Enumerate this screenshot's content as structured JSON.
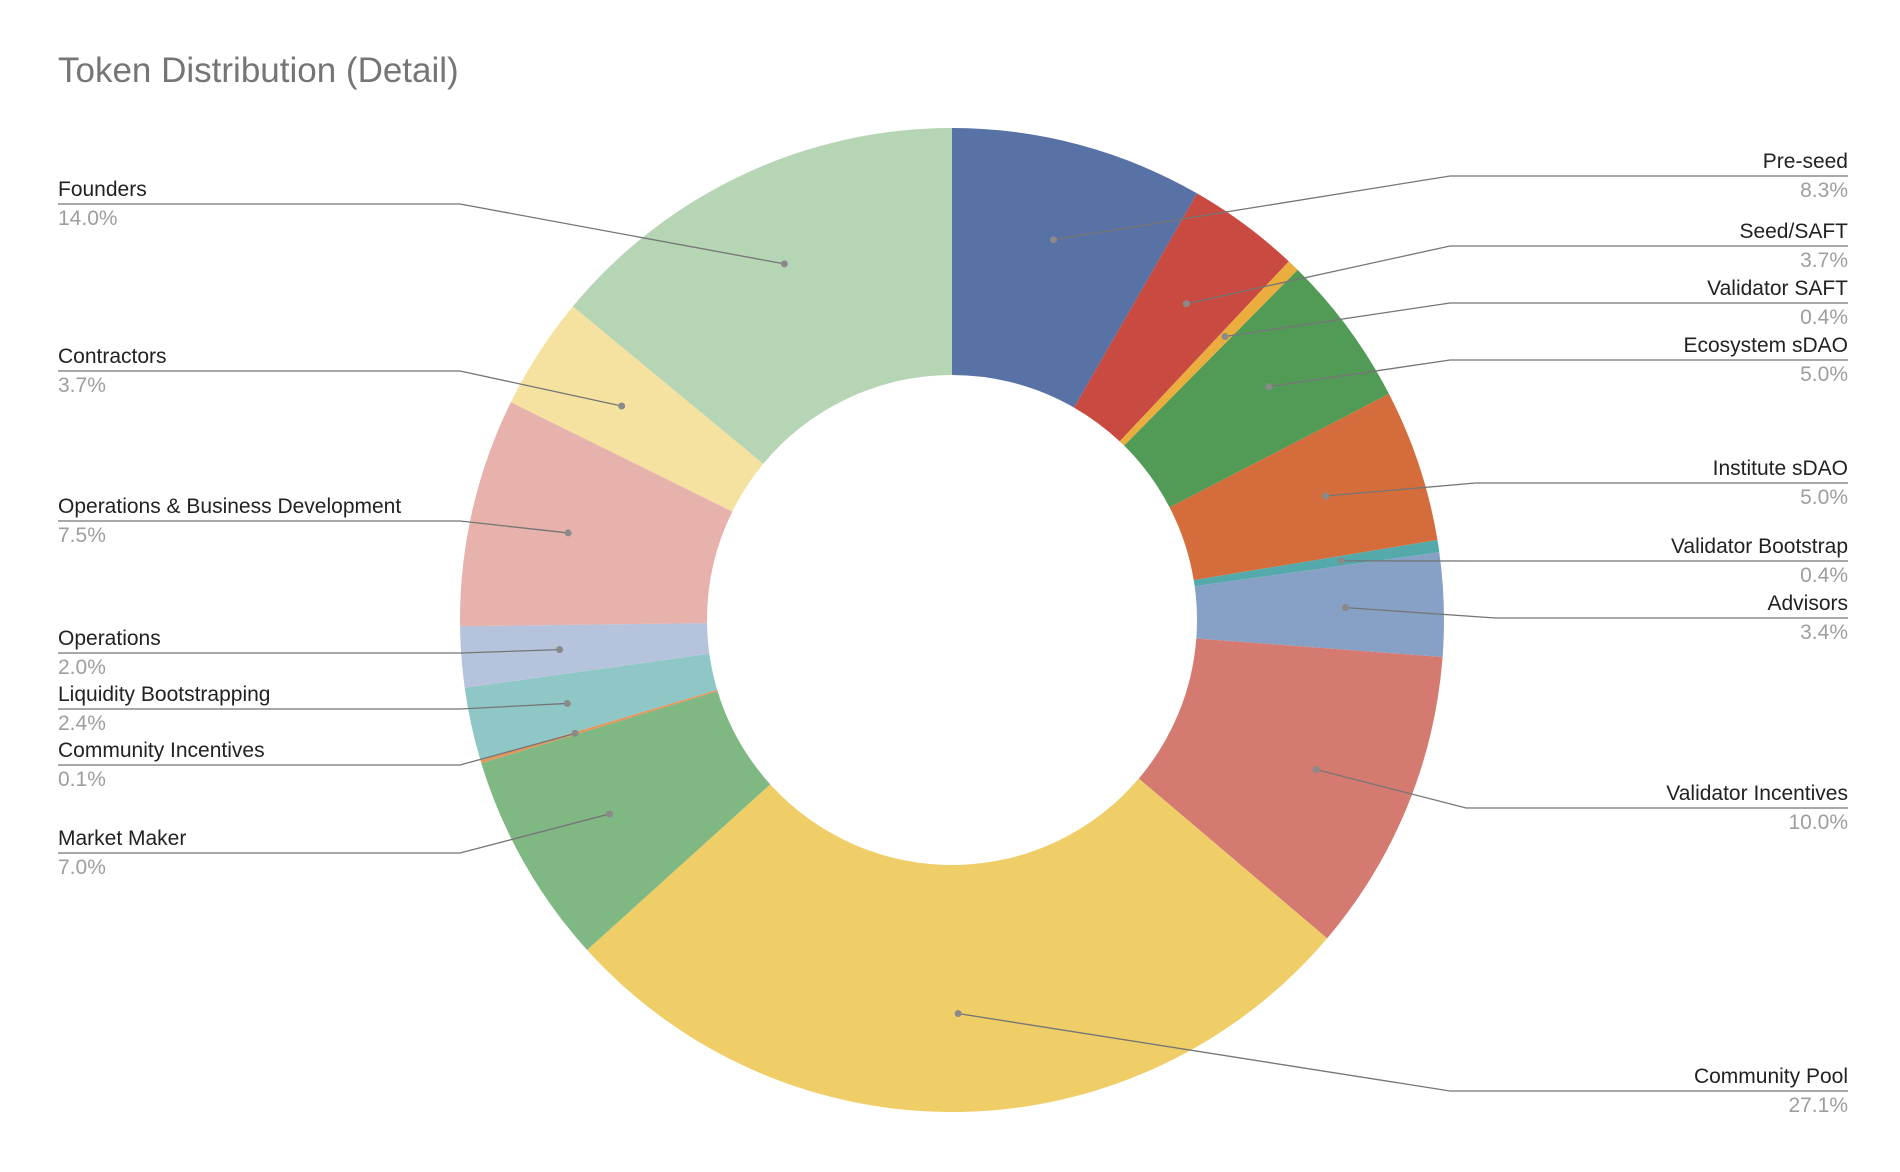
{
  "chart_data": {
    "type": "pie",
    "variant": "donut",
    "title": "Token Distribution (Detail)",
    "slices": [
      {
        "label": "Pre-seed",
        "value": 8.3,
        "value_label": "8.3%",
        "color": "#5872a6"
      },
      {
        "label": "Seed/SAFT",
        "value": 3.7,
        "value_label": "3.7%",
        "color": "#c94a41"
      },
      {
        "label": "Validator SAFT",
        "value": 0.4,
        "value_label": "0.4%",
        "color": "#eaad3e"
      },
      {
        "label": "Ecosystem sDAO",
        "value": 5.0,
        "value_label": "5.0%",
        "color": "#529b57"
      },
      {
        "label": "Institute sDAO",
        "value": 5.0,
        "value_label": "5.0%",
        "color": "#d46d3b"
      },
      {
        "label": "Validator Bootstrap",
        "value": 0.4,
        "value_label": "0.4%",
        "color": "#54aaaa"
      },
      {
        "label": "Advisors",
        "value": 3.4,
        "value_label": "3.4%",
        "color": "#87a0c6"
      },
      {
        "label": "Validator Incentives",
        "value": 10.0,
        "value_label": "10.0%",
        "color": "#d57a70"
      },
      {
        "label": "Community Pool",
        "value": 27.1,
        "value_label": "27.1%",
        "color": "#efce68"
      },
      {
        "label": "Market Maker",
        "value": 7.0,
        "value_label": "7.0%",
        "color": "#80b883"
      },
      {
        "label": "Community Incentives",
        "value": 0.1,
        "value_label": "0.1%",
        "color": "#e3965c"
      },
      {
        "label": "Liquidity Bootstrapping",
        "value": 2.4,
        "value_label": "2.4%",
        "color": "#8fc7c6"
      },
      {
        "label": "Operations",
        "value": 2.0,
        "value_label": "2.0%",
        "color": "#b5c4dc"
      },
      {
        "label": "Operations & Business Development",
        "value": 7.5,
        "value_label": "7.5%",
        "color": "#e6b2ab"
      },
      {
        "label": "Contractors",
        "value": 3.7,
        "value_label": "3.7%",
        "color": "#f5e2a0"
      },
      {
        "label": "Founders",
        "value": 14.0,
        "value_label": "14.0%",
        "color": "#b6d5b5"
      }
    ],
    "start_angle": "12 o'clock",
    "direction": "clockwise",
    "legend": "labels with leader lines"
  }
}
